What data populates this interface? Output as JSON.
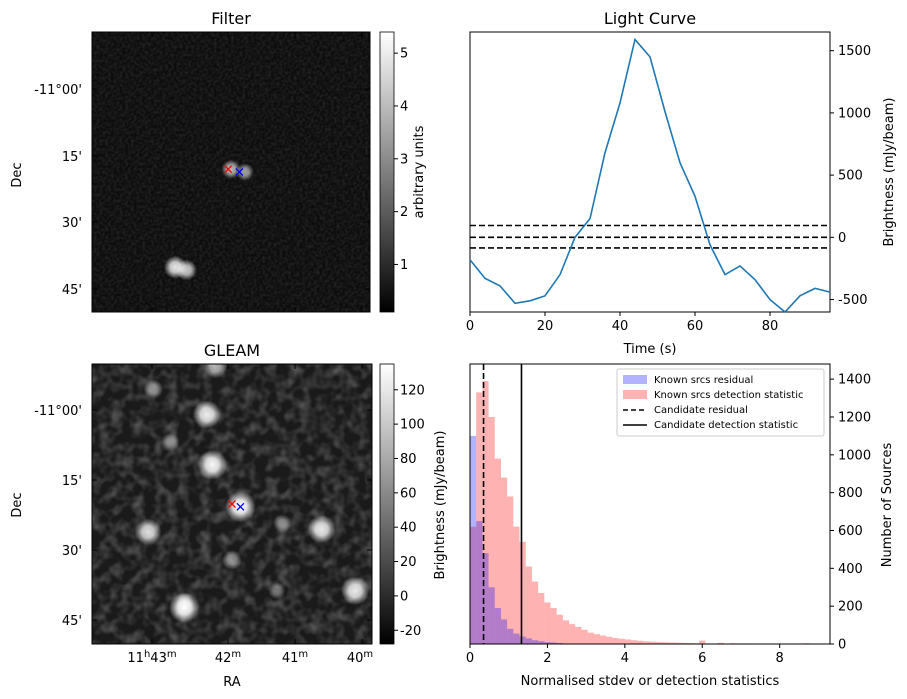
{
  "chart_data": [
    {
      "panel": "filter",
      "type": "heatmap",
      "title": "Filter",
      "xlabel": "",
      "ylabel": "Dec",
      "y_ticks": [
        "-11°00'",
        "15'",
        "30'",
        "45'"
      ],
      "colorbar": {
        "label": "arbitrary units",
        "ticks": [
          "1",
          "2",
          "3",
          "4",
          "5"
        ],
        "range": [
          0.1,
          5.4
        ],
        "colormap": "gray"
      },
      "sources": [
        {
          "kind": "blob",
          "x": 0.5,
          "y": 0.49,
          "value": 3.2
        },
        {
          "kind": "blob",
          "x": 0.55,
          "y": 0.5,
          "value": 2.6
        },
        {
          "kind": "blob",
          "x": 0.3,
          "y": 0.84,
          "value": 4.6
        },
        {
          "kind": "blob",
          "x": 0.34,
          "y": 0.85,
          "value": 3.8
        }
      ],
      "markers": [
        {
          "symbol": "x",
          "color": "#ff0000",
          "x": 0.49,
          "y": 0.49
        },
        {
          "symbol": "x",
          "color": "#0000ff",
          "x": 0.53,
          "y": 0.5
        }
      ]
    },
    {
      "panel": "light_curve",
      "type": "line",
      "title": "Light Curve",
      "xlabel": "Time (s)",
      "ylabel": "Brightness (mJy/beam)",
      "xlim": [
        0,
        96
      ],
      "ylim": [
        -600,
        1650
      ],
      "x_ticks": [
        0,
        20,
        40,
        60,
        80
      ],
      "y_ticks": [
        -500,
        0,
        500,
        1000,
        1500
      ],
      "y_axis_side": "right",
      "series": [
        {
          "color": "#1f77b4",
          "x": [
            0,
            4,
            8,
            12,
            16,
            20,
            24,
            28,
            32,
            36,
            40,
            44,
            48,
            52,
            56,
            60,
            64,
            68,
            72,
            76,
            80,
            84,
            88,
            92,
            96
          ],
          "y": [
            -180,
            -330,
            -390,
            -530,
            -510,
            -470,
            -300,
            0,
            150,
            680,
            1080,
            1590,
            1450,
            1010,
            600,
            330,
            -60,
            -300,
            -230,
            -340,
            -500,
            -600,
            -470,
            -410,
            -440
          ]
        }
      ],
      "hlines": [
        {
          "y": 95,
          "style": "dashed",
          "color": "#000000"
        },
        {
          "y": 0,
          "style": "dashed",
          "color": "#000000"
        },
        {
          "y": -85,
          "style": "dashed",
          "color": "#000000"
        }
      ]
    },
    {
      "panel": "gleam",
      "type": "heatmap",
      "title": "GLEAM",
      "xlabel": "RA",
      "ylabel": "Dec",
      "x_ticks": [
        {
          "main": "11",
          "sup1": "h",
          "mid": "43",
          "sup2": "m"
        },
        {
          "main": "42",
          "sup2": "m"
        },
        {
          "main": "41",
          "sup2": "m"
        },
        {
          "main": "40",
          "sup2": "m"
        }
      ],
      "y_ticks": [
        "-11°00'",
        "15'",
        "30'",
        "45'"
      ],
      "colorbar": {
        "label": "Brightness (mJy/beam)",
        "ticks": [
          "-20",
          "0",
          "20",
          "40",
          "60",
          "80",
          "100",
          "120"
        ],
        "range": [
          -28,
          135
        ],
        "colormap": "gray"
      },
      "sources": [
        {
          "kind": "blob",
          "x": 0.44,
          "y": 0.01,
          "value": 85
        },
        {
          "kind": "blob",
          "x": 0.22,
          "y": 0.09,
          "value": 60
        },
        {
          "kind": "blob",
          "x": 0.41,
          "y": 0.18,
          "value": 120
        },
        {
          "kind": "blob",
          "x": 0.28,
          "y": 0.28,
          "value": 55
        },
        {
          "kind": "blob",
          "x": 0.43,
          "y": 0.36,
          "value": 130
        },
        {
          "kind": "blob",
          "x": 0.53,
          "y": 0.51,
          "value": 135
        },
        {
          "kind": "blob",
          "x": 0.68,
          "y": 0.57,
          "value": 55
        },
        {
          "kind": "blob",
          "x": 0.82,
          "y": 0.59,
          "value": 120
        },
        {
          "kind": "blob",
          "x": 0.2,
          "y": 0.6,
          "value": 110
        },
        {
          "kind": "blob",
          "x": 0.5,
          "y": 0.7,
          "value": 60
        },
        {
          "kind": "blob",
          "x": 0.33,
          "y": 0.85,
          "value": 50
        },
        {
          "kind": "blob",
          "x": 0.33,
          "y": 0.87,
          "value": 135
        },
        {
          "kind": "blob",
          "x": 0.94,
          "y": 0.81,
          "value": 120
        },
        {
          "kind": "blob",
          "x": 0.66,
          "y": 0.81,
          "value": 45
        }
      ],
      "markers": [
        {
          "symbol": "x",
          "color": "#ff0000",
          "x": 0.5,
          "y": 0.5
        },
        {
          "symbol": "x",
          "color": "#0000ff",
          "x": 0.53,
          "y": 0.51
        }
      ]
    },
    {
      "panel": "histogram",
      "type": "bar",
      "title": "",
      "xlabel": "Normalised stdev or detection statistics",
      "ylabel": "Number of Sources",
      "xlim": [
        0,
        9.3
      ],
      "ylim": [
        0,
        1480
      ],
      "x_ticks": [
        0,
        2,
        4,
        6,
        8
      ],
      "y_ticks": [
        0,
        200,
        400,
        600,
        800,
        1000,
        1200,
        1400
      ],
      "y_axis_side": "right",
      "legend": "top-right",
      "bin_width": 0.16,
      "series": [
        {
          "name": "Known srcs residual",
          "color": "#0000ff",
          "alpha": 0.3,
          "x": [
            0.0,
            0.16,
            0.32,
            0.48,
            0.64,
            0.8,
            0.96,
            1.12,
            1.28,
            1.44,
            1.6,
            1.76,
            1.92,
            2.08,
            2.24,
            2.4,
            2.56
          ],
          "values": [
            1100,
            650,
            480,
            300,
            190,
            130,
            80,
            55,
            40,
            30,
            20,
            15,
            10,
            8,
            5,
            3,
            2
          ]
        },
        {
          "name": "Known srcs detection statistic",
          "color": "#ff0000",
          "alpha": 0.3,
          "x": [
            0.0,
            0.16,
            0.32,
            0.48,
            0.64,
            0.8,
            0.96,
            1.12,
            1.28,
            1.44,
            1.6,
            1.76,
            1.92,
            2.08,
            2.24,
            2.4,
            2.56,
            2.72,
            2.88,
            3.04,
            3.2,
            3.36,
            3.52,
            3.68,
            3.84,
            4.0,
            4.16,
            4.32,
            4.48,
            4.64,
            4.8,
            4.96,
            5.12,
            5.28,
            5.44,
            5.6,
            5.76,
            5.92,
            6.08,
            6.4,
            6.72,
            7.04,
            7.36,
            7.68,
            8.0,
            8.32,
            8.64
          ],
          "values": [
            620,
            1330,
            1390,
            1200,
            980,
            880,
            780,
            620,
            540,
            410,
            330,
            270,
            220,
            190,
            155,
            125,
            105,
            90,
            75,
            60,
            52,
            45,
            38,
            32,
            28,
            24,
            20,
            17,
            14,
            12,
            10,
            9,
            8,
            7,
            6,
            5,
            4,
            18,
            3,
            6,
            4,
            3,
            2,
            2,
            1,
            1,
            4
          ]
        }
      ],
      "vlines": [
        {
          "name": "Candidate residual",
          "x": 0.35,
          "style": "dashed",
          "color": "#000000"
        },
        {
          "name": "Candidate detection statistic",
          "x": 1.33,
          "style": "solid",
          "color": "#000000"
        }
      ]
    }
  ]
}
